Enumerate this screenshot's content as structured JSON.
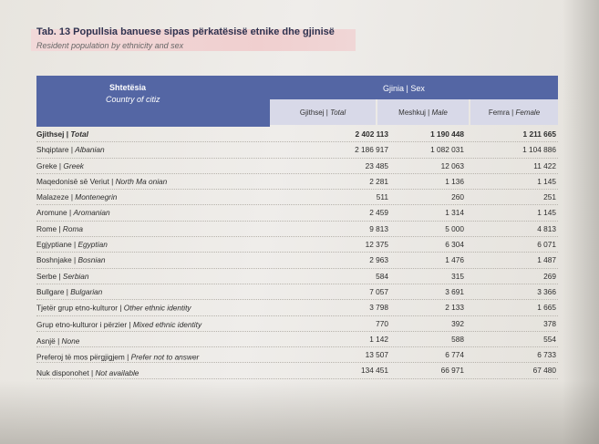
{
  "table": {
    "title": "Tab. 13 Popullsia banuese sipas përkatësisë etnike dhe gjinisë",
    "subtitle": "Resident population by ethnicity and sex",
    "header_left_title": "Shtetësia",
    "header_left_sub": "Country of citiz",
    "header_right_title": "Gjinia | Sex",
    "columns": [
      {
        "al": "Gjithsej",
        "en": "Total"
      },
      {
        "al": "Meshkuj",
        "en": "Male"
      },
      {
        "al": "Femra",
        "en": "Female"
      }
    ],
    "rows": [
      {
        "al": "Gjithsej",
        "en": "Total",
        "total": "2 402 113",
        "male": "1 190 448",
        "female": "1 211 665"
      },
      {
        "al": "Shqiptare",
        "en": "Albanian",
        "total": "2 186 917",
        "male": "1 082 031",
        "female": "1 104 886"
      },
      {
        "al": "Greke",
        "en": "Greek",
        "total": "23 485",
        "male": "12 063",
        "female": "11 422"
      },
      {
        "al": "Maqedonisë së Veriut",
        "en": "North Ma   onian",
        "total": "2 281",
        "male": "1 136",
        "female": "1 145"
      },
      {
        "al": "Malazeze",
        "en": "Montenegrin",
        "total": "511",
        "male": "260",
        "female": "251"
      },
      {
        "al": "Aromune",
        "en": "Aromanian",
        "total": "2 459",
        "male": "1 314",
        "female": "1 145"
      },
      {
        "al": "Rome",
        "en": "Roma",
        "total": "9 813",
        "male": "5 000",
        "female": "4 813"
      },
      {
        "al": "Egjyptiane",
        "en": "Egyptian",
        "total": "12 375",
        "male": "6 304",
        "female": "6 071"
      },
      {
        "al": "Boshnjake",
        "en": "Bosnian",
        "total": "2 963",
        "male": "1 476",
        "female": "1 487"
      },
      {
        "al": "Serbe",
        "en": "Serbian",
        "total": "584",
        "male": "315",
        "female": "269"
      },
      {
        "al": "Bullgare",
        "en": "Bulgarian",
        "total": "7 057",
        "male": "3 691",
        "female": "3 366"
      },
      {
        "al": "Tjetër grup etno-kulturor",
        "en": "Other ethnic identity",
        "total": "3 798",
        "male": "2 133",
        "female": "1 665"
      },
      {
        "al": "Grup etno-kulturor i përzier",
        "en": "Mixed ethnic identity",
        "total": "770",
        "male": "392",
        "female": "378"
      },
      {
        "al": "Asnjë",
        "en": "None",
        "total": "1 142",
        "male": "588",
        "female": "554"
      },
      {
        "al": "Preferoj të mos përgjigjem",
        "en": "Prefer not to answer",
        "total": "13 507",
        "male": "6 774",
        "female": "6 733"
      },
      {
        "al": "Nuk disponohet",
        "en": "Not available",
        "total": "134 451",
        "male": "66 971",
        "female": "67 480"
      }
    ]
  }
}
